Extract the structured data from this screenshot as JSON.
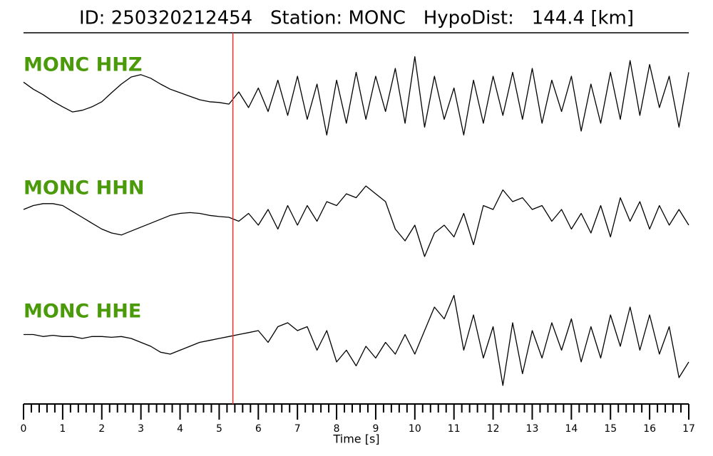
{
  "chart_data": {
    "type": "line",
    "title": "ID: 250320212454   Station: MONC   HypoDist:   144.4 [km]",
    "xlabel": "Time [s]",
    "xlim": [
      0,
      17
    ],
    "xticks": [
      0,
      1,
      2,
      3,
      4,
      5,
      6,
      7,
      8,
      9,
      10,
      11,
      12,
      13,
      14,
      15,
      16,
      17
    ],
    "xminorticks": [
      0.2,
      0.4,
      0.6,
      0.8,
      1.2,
      1.4,
      1.6,
      1.8,
      2.2,
      2.4,
      2.6,
      2.8,
      3.2,
      3.4,
      3.6,
      3.8,
      4.2,
      4.4,
      4.6,
      4.8,
      5.2,
      5.4,
      5.6,
      5.8,
      6.2,
      6.4,
      6.6,
      6.8,
      7.2,
      7.4,
      7.6,
      7.8,
      8.2,
      8.4,
      8.6,
      8.8,
      9.2,
      9.4,
      9.6,
      9.8,
      10.2,
      10.4,
      10.6,
      10.8,
      11.2,
      11.4,
      11.6,
      11.8,
      12.2,
      12.4,
      12.6,
      12.8,
      13.2,
      13.4,
      13.6,
      13.8,
      14.2,
      14.4,
      14.6,
      14.8,
      15.2,
      15.4,
      15.6,
      15.8,
      16.2,
      16.4,
      16.6,
      16.8
    ],
    "pick_time": 5.35,
    "pick_color": "#e8312a",
    "label_color": "#4a9a0a",
    "x": [
      0,
      0.25,
      0.5,
      0.75,
      1,
      1.25,
      1.5,
      1.75,
      2,
      2.25,
      2.5,
      2.75,
      3,
      3.25,
      3.5,
      3.75,
      4,
      4.25,
      4.5,
      4.75,
      5,
      5.25,
      5.5,
      5.75,
      6,
      6.25,
      6.5,
      6.75,
      7,
      7.25,
      7.5,
      7.75,
      8,
      8.25,
      8.5,
      8.75,
      9,
      9.25,
      9.5,
      9.75,
      10,
      10.25,
      10.5,
      10.75,
      11,
      11.25,
      11.5,
      11.75,
      12,
      12.25,
      12.5,
      12.75,
      13,
      13.25,
      13.5,
      13.75,
      14,
      14.25,
      14.5,
      14.75,
      15,
      15.25,
      15.5,
      15.75,
      16,
      16.25,
      16.5,
      16.75,
      17
    ],
    "series": [
      {
        "name": "MONC HHZ",
        "color": "#000000",
        "values": [
          0.45,
          0.27,
          0.13,
          -0.04,
          -0.18,
          -0.31,
          -0.27,
          -0.18,
          -0.05,
          0.18,
          0.4,
          0.58,
          0.64,
          0.55,
          0.4,
          0.27,
          0.18,
          0.09,
          0,
          -0.05,
          -0.07,
          -0.11,
          0.2,
          -0.2,
          0.3,
          -0.3,
          0.5,
          -0.4,
          0.6,
          -0.5,
          0.4,
          -0.9,
          0.5,
          -0.6,
          0.7,
          -0.5,
          0.6,
          -0.3,
          0.8,
          -0.6,
          1.1,
          -0.7,
          0.6,
          -0.5,
          0.3,
          -0.9,
          0.5,
          -0.6,
          0.6,
          -0.4,
          0.7,
          -0.5,
          0.8,
          -0.6,
          0.5,
          -0.3,
          0.6,
          -0.8,
          0.4,
          -0.6,
          0.7,
          -0.5,
          1.0,
          -0.4,
          0.9,
          -0.2,
          0.6,
          -0.7,
          0.7
        ]
      },
      {
        "name": "MONC HHN",
        "color": "#000000",
        "values": [
          0.2,
          0.3,
          0.35,
          0.35,
          0.3,
          0.15,
          0,
          -0.15,
          -0.3,
          -0.4,
          -0.45,
          -0.35,
          -0.25,
          -0.15,
          -0.05,
          0.05,
          0.1,
          0.12,
          0.1,
          0.05,
          0.02,
          0,
          -0.1,
          0.1,
          -0.2,
          0.2,
          -0.3,
          0.3,
          -0.2,
          0.3,
          -0.1,
          0.4,
          0.3,
          0.6,
          0.5,
          0.8,
          0.6,
          0.4,
          -0.3,
          -0.6,
          -0.2,
          -1.0,
          -0.4,
          -0.2,
          -0.5,
          0.1,
          -0.7,
          0.3,
          0.2,
          0.7,
          0.4,
          0.5,
          0.2,
          0.3,
          -0.1,
          0.2,
          -0.3,
          0.1,
          -0.4,
          0.3,
          -0.5,
          0.5,
          -0.1,
          0.4,
          -0.3,
          0.3,
          -0.2,
          0.2,
          -0.2
        ]
      },
      {
        "name": "MONC HHE",
        "color": "#000000",
        "values": [
          0.1,
          0.1,
          0.05,
          0.08,
          0.05,
          0.05,
          0,
          0.05,
          0.05,
          0.03,
          0.05,
          0,
          -0.1,
          -0.2,
          -0.35,
          -0.4,
          -0.3,
          -0.2,
          -0.1,
          -0.05,
          0,
          0.05,
          0.1,
          0.15,
          0.2,
          -0.1,
          0.3,
          0.4,
          0.2,
          0.3,
          -0.3,
          0.2,
          -0.6,
          -0.3,
          -0.7,
          -0.2,
          -0.5,
          -0.1,
          -0.4,
          0.1,
          -0.4,
          0.2,
          0.8,
          0.5,
          1.1,
          -0.3,
          0.6,
          -0.5,
          0.3,
          -1.2,
          0.4,
          -0.9,
          0.2,
          -0.5,
          0.4,
          -0.3,
          0.5,
          -0.6,
          0.3,
          -0.5,
          0.6,
          -0.2,
          0.8,
          -0.3,
          0.6,
          -0.4,
          0.3,
          -1.0,
          -0.6
        ]
      }
    ]
  }
}
